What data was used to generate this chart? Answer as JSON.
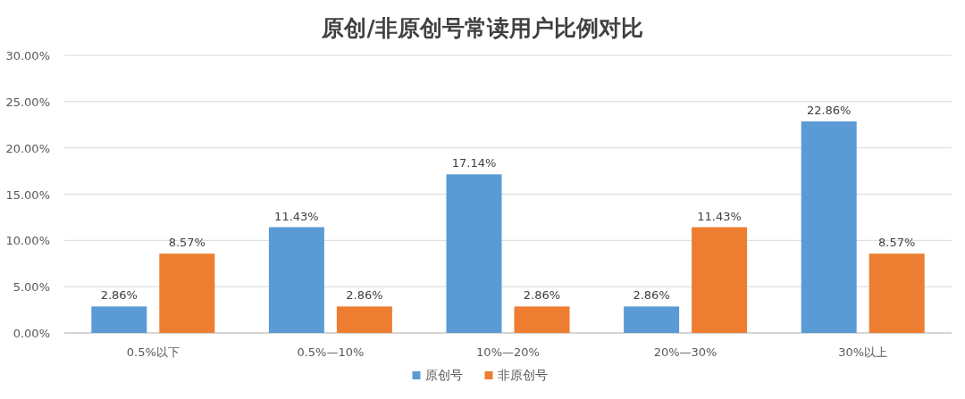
{
  "chart_data": {
    "type": "bar",
    "title": "原创/非原创号常读用户比例对比",
    "categories": [
      "0.5%以下",
      "0.5%—10%",
      "10%—20%",
      "20%—30%",
      "30%以上"
    ],
    "series": [
      {
        "name": "原创号",
        "color": "#5b9bd5",
        "values": [
          2.86,
          11.43,
          17.14,
          2.86,
          22.86
        ],
        "value_labels": [
          "2.86%",
          "11.43%",
          "17.14%",
          "2.86%",
          "22.86%"
        ]
      },
      {
        "name": "非原创号",
        "color": "#ed7d31",
        "values": [
          8.57,
          2.86,
          2.86,
          11.43,
          8.57
        ],
        "value_labels": [
          "8.57%",
          "2.86%",
          "2.86%",
          "11.43%",
          "8.57%"
        ]
      }
    ],
    "ylim": [
      0,
      30
    ],
    "yticks": [
      {
        "value": 0,
        "label": "0.00%"
      },
      {
        "value": 5,
        "label": "5.00%"
      },
      {
        "value": 10,
        "label": "10.00%"
      },
      {
        "value": 15,
        "label": "15.00%"
      },
      {
        "value": 20,
        "label": "20.00%"
      },
      {
        "value": 25,
        "label": "25.00%"
      },
      {
        "value": 30,
        "label": "30.00%"
      }
    ],
    "grid": "y",
    "legend": "bottom"
  }
}
